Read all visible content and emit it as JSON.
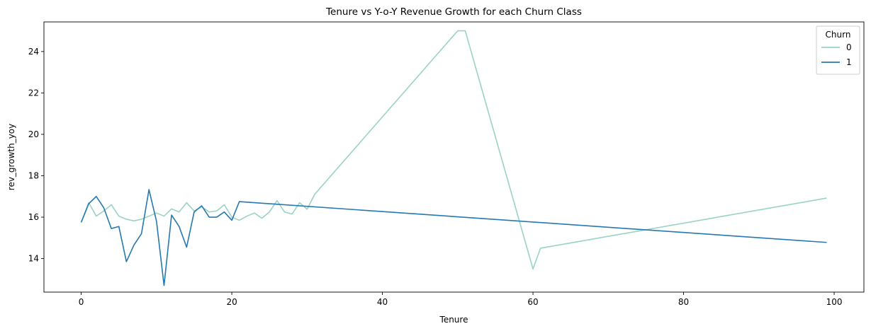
{
  "chart_data": {
    "type": "line",
    "title": "Tenure vs Y-o-Y Revenue Growth for each Churn Class",
    "xlabel": "Tenure",
    "ylabel": "rev_growth_yoy",
    "xlim": [
      -4.95,
      103.95
    ],
    "ylim": [
      12.38,
      25.43
    ],
    "xticks": [
      0,
      20,
      40,
      60,
      80,
      100
    ],
    "yticks": [
      14,
      16,
      18,
      20,
      22,
      24
    ],
    "grid": false,
    "legend": {
      "title": "Churn",
      "placement": "top-right"
    },
    "series": [
      {
        "name": "0",
        "color": "#99d3c3",
        "x": [
          0,
          1,
          2,
          3,
          4,
          5,
          6,
          7,
          8,
          9,
          10,
          11,
          12,
          13,
          14,
          15,
          16,
          17,
          18,
          19,
          20,
          21,
          22,
          23,
          24,
          25,
          26,
          27,
          28,
          29,
          30,
          31,
          50,
          51,
          60,
          61,
          99
        ],
        "y": [
          15.75,
          16.7,
          16.05,
          16.3,
          16.6,
          16.05,
          15.9,
          15.82,
          15.9,
          16.05,
          16.2,
          16.05,
          16.4,
          16.25,
          16.7,
          16.3,
          16.5,
          16.25,
          16.3,
          16.6,
          16.0,
          15.85,
          16.05,
          16.2,
          15.95,
          16.25,
          16.8,
          16.25,
          16.15,
          16.7,
          16.38,
          17.1,
          25.0,
          25.0,
          13.5,
          14.5,
          16.92
        ]
      },
      {
        "name": "1",
        "color": "#2479b0",
        "x": [
          0,
          1,
          2,
          3,
          4,
          5,
          6,
          7,
          8,
          9,
          10,
          11,
          12,
          13,
          14,
          15,
          16,
          17,
          18,
          19,
          20,
          21,
          99
        ],
        "y": [
          15.75,
          16.65,
          17.0,
          16.45,
          15.45,
          15.55,
          13.85,
          14.65,
          15.2,
          17.33,
          15.8,
          12.7,
          16.1,
          15.55,
          14.55,
          16.25,
          16.55,
          16.0,
          16.0,
          16.25,
          15.85,
          16.75,
          14.78
        ]
      }
    ]
  }
}
